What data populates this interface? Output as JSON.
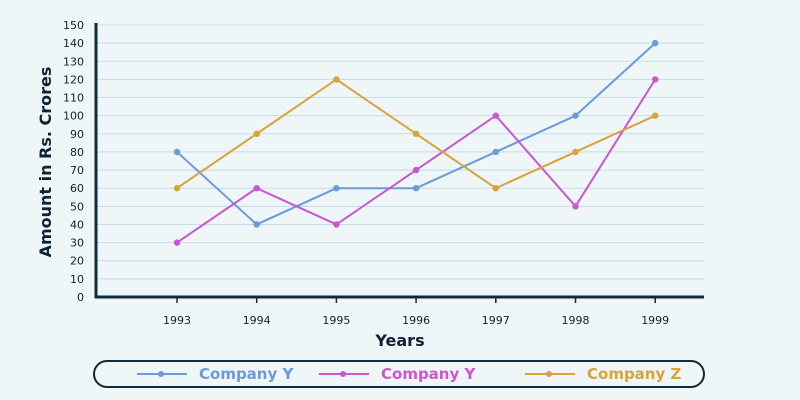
{
  "chart_data": {
    "type": "line",
    "title": "",
    "xlabel": "Years",
    "ylabel": "Amount in Rs. Crores",
    "x": [
      "1993",
      "1994",
      "1995",
      "1996",
      "1997",
      "1998",
      "1999"
    ],
    "ylim": [
      0,
      150
    ],
    "yticks": [
      "0",
      "10",
      "20",
      "30",
      "40",
      "50",
      "60",
      "70",
      "80",
      "90",
      "100",
      "110",
      "120",
      "130",
      "140",
      "150"
    ],
    "grid": true,
    "legend_position": "bottom",
    "series": [
      {
        "name": "Company Y",
        "color": "#6a9bd8",
        "values": [
          80,
          40,
          60,
          60,
          80,
          100,
          140
        ]
      },
      {
        "name": "Company Y",
        "color": "#cc55d0",
        "values": [
          30,
          60,
          40,
          70,
          100,
          50,
          120
        ]
      },
      {
        "name": "Company Z",
        "color": "#d9a23a",
        "values": [
          60,
          90,
          120,
          90,
          60,
          80,
          100
        ]
      }
    ]
  }
}
